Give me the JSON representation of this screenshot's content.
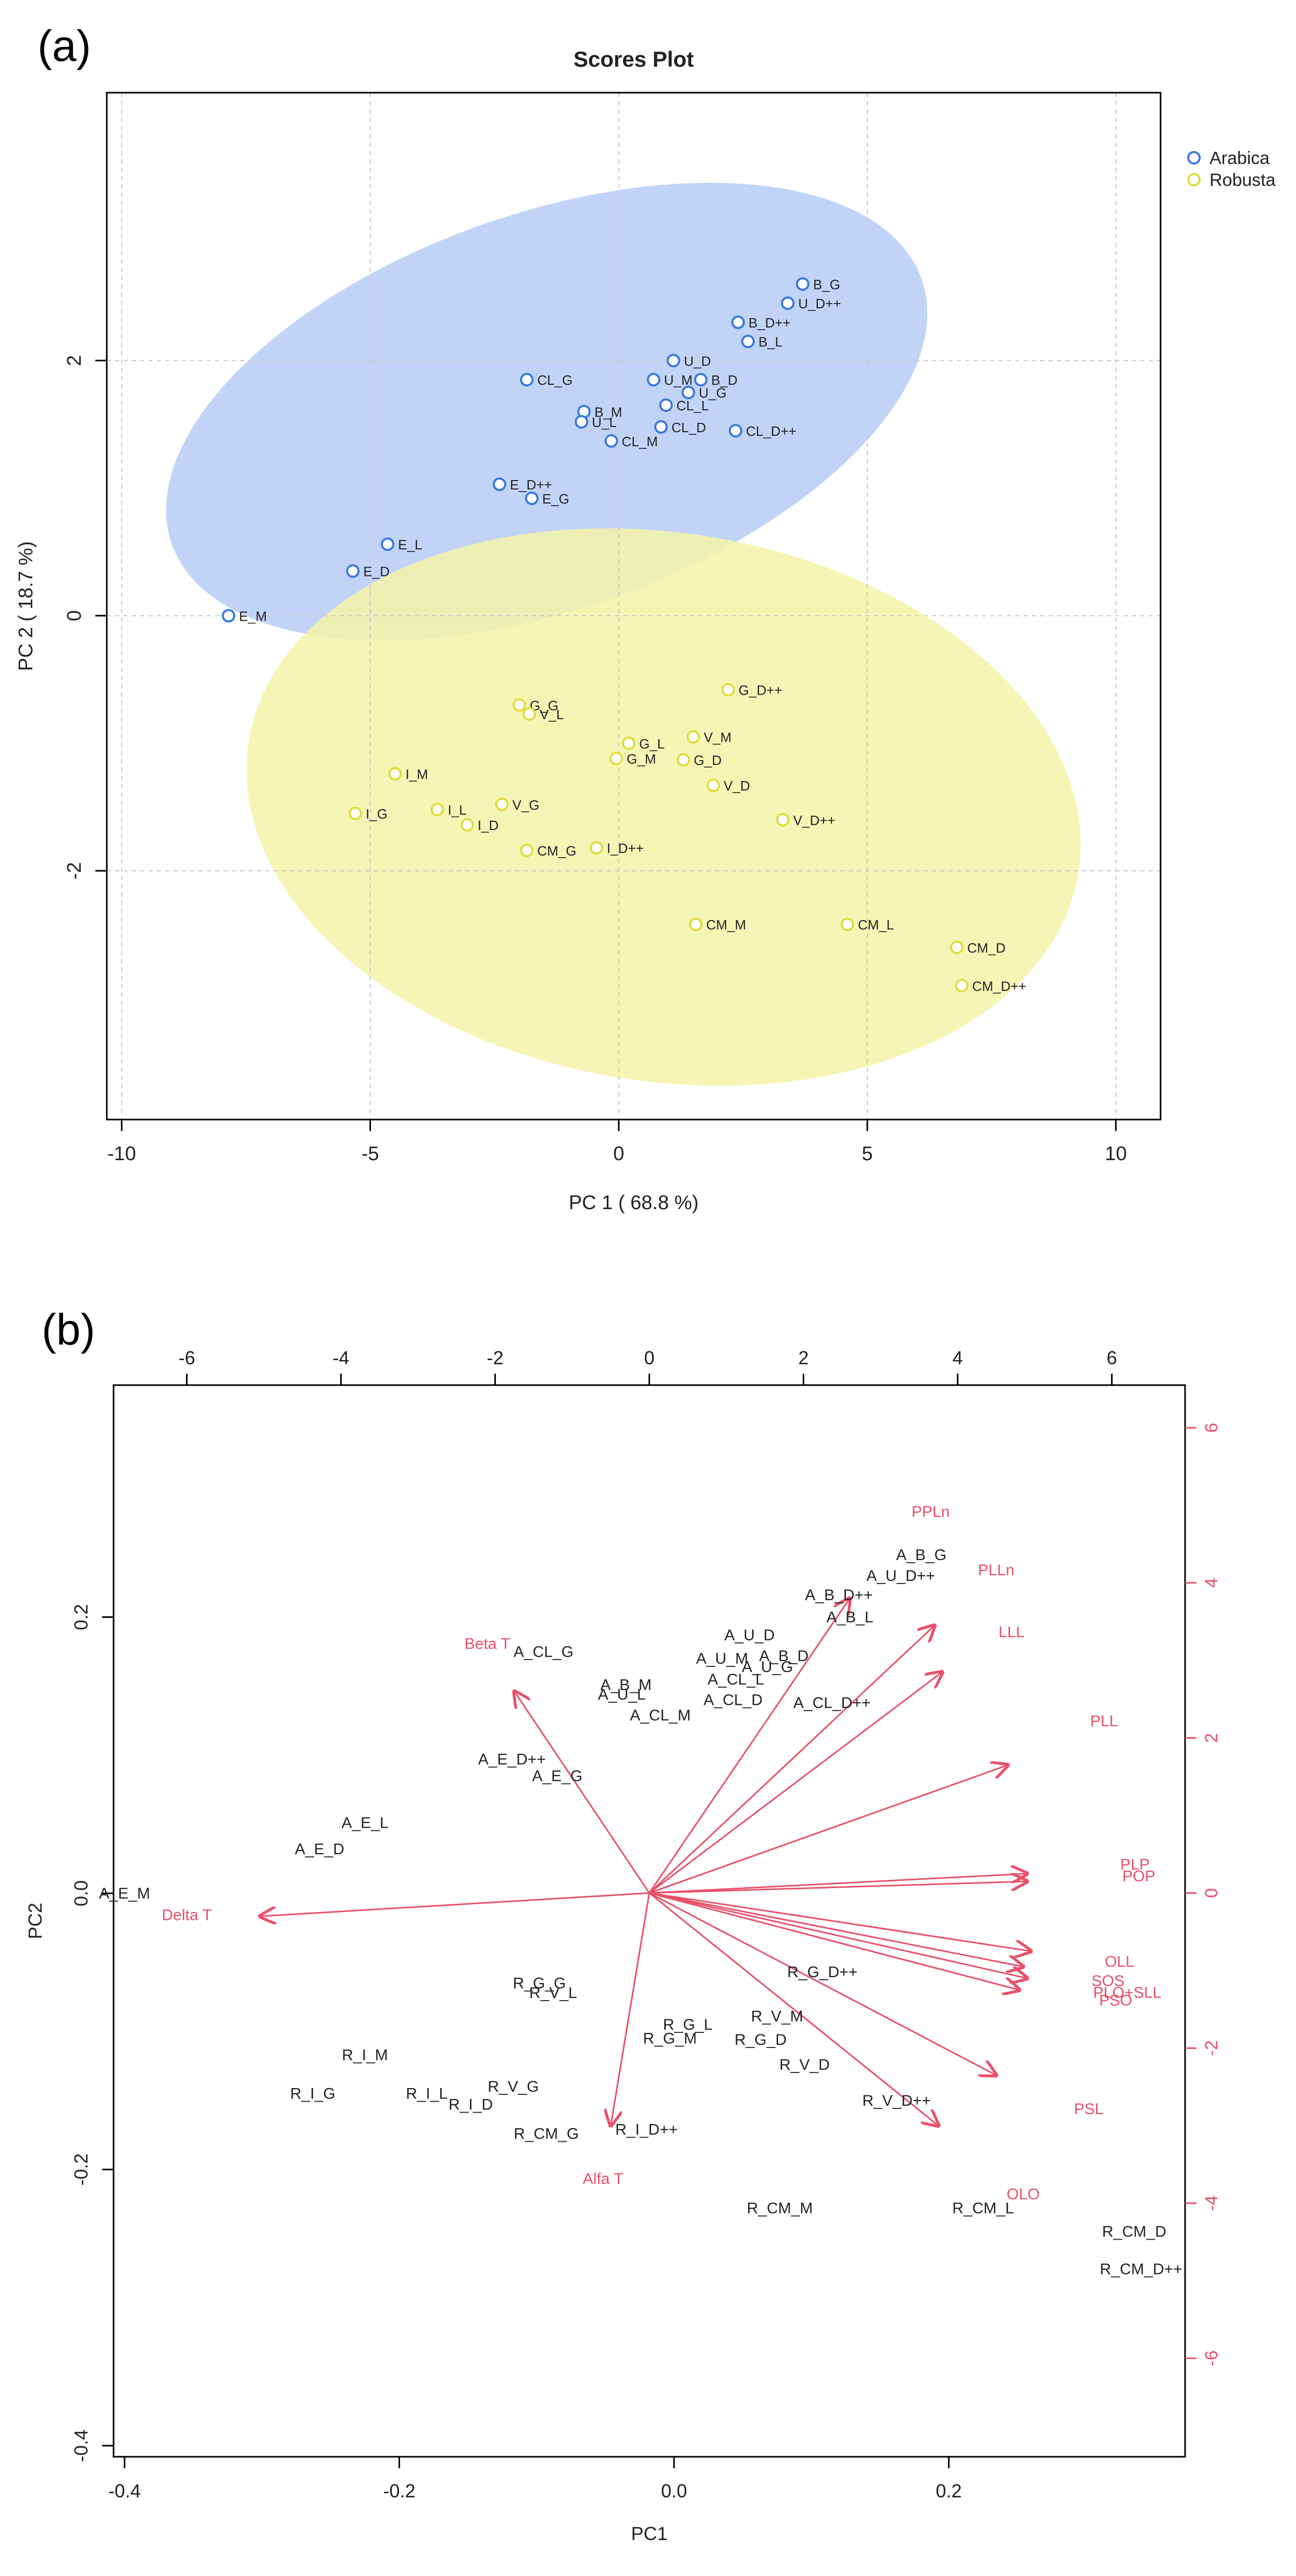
{
  "panel_a": {
    "label": "(a)",
    "chart_data": {
      "type": "scatter",
      "title": "Scores Plot",
      "xlabel": "PC 1 ( 68.8 %)",
      "ylabel": "PC 2 ( 18.7 %)",
      "xlim": [
        -10.3,
        10.9
      ],
      "ylim": [
        -3.95,
        4.1
      ],
      "xticks": [
        -10,
        -5,
        0,
        5,
        10
      ],
      "yticks": [
        -2,
        0,
        2
      ],
      "xtick_labels": [
        "-10",
        "-5",
        "0",
        "5",
        "10"
      ],
      "ytick_labels": [
        "-2",
        "0",
        "2"
      ],
      "grid": true,
      "legend": [
        {
          "name": "Arabica",
          "color": "#3a78e0"
        },
        {
          "name": "Robusta",
          "color": "#e0dc3c"
        }
      ],
      "ellipses": [
        {
          "group": "Arabica",
          "cx": -1.45,
          "cy": 1.6,
          "a": 8.0,
          "b": 1.55,
          "angle_deg": 19.5,
          "fill": "#b6cdf7"
        },
        {
          "group": "Robusta",
          "cx": 0.9,
          "cy": -1.5,
          "a": 8.45,
          "b": 2.15,
          "angle_deg": -9,
          "fill": "#f3f5a8"
        }
      ],
      "series": [
        {
          "name": "Arabica",
          "color": "#3a78e0",
          "points": [
            {
              "label": "B_G",
              "x": 3.7,
              "y": 2.6
            },
            {
              "label": "U_D++",
              "x": 3.4,
              "y": 2.45
            },
            {
              "label": "B_D++",
              "x": 2.4,
              "y": 2.3
            },
            {
              "label": "B_L",
              "x": 2.6,
              "y": 2.15
            },
            {
              "label": "U_D",
              "x": 1.1,
              "y": 2.0
            },
            {
              "label": "U_M",
              "x": 0.7,
              "y": 1.85
            },
            {
              "label": "B_D",
              "x": 1.65,
              "y": 1.85
            },
            {
              "label": "U_G",
              "x": 1.4,
              "y": 1.75
            },
            {
              "label": "CL_L",
              "x": 0.95,
              "y": 1.65
            },
            {
              "label": "CL_G",
              "x": -1.85,
              "y": 1.85
            },
            {
              "label": "B_M",
              "x": -0.7,
              "y": 1.6
            },
            {
              "label": "U_L",
              "x": -0.75,
              "y": 1.52
            },
            {
              "label": "CL_D",
              "x": 0.85,
              "y": 1.48
            },
            {
              "label": "CL_D++",
              "x": 2.35,
              "y": 1.45
            },
            {
              "label": "CL_M",
              "x": -0.15,
              "y": 1.37
            },
            {
              "label": "E_D++",
              "x": -2.4,
              "y": 1.03
            },
            {
              "label": "E_G",
              "x": -1.75,
              "y": 0.92
            },
            {
              "label": "E_L",
              "x": -4.65,
              "y": 0.56
            },
            {
              "label": "E_D",
              "x": -5.35,
              "y": 0.35
            },
            {
              "label": "E_M",
              "x": -7.85,
              "y": 0.0
            }
          ]
        },
        {
          "name": "Robusta",
          "color": "#e0dc3c",
          "points": [
            {
              "label": "G_D++",
              "x": 2.2,
              "y": -0.58
            },
            {
              "label": "G_G",
              "x": -2.0,
              "y": -0.7
            },
            {
              "label": "V_L",
              "x": -1.8,
              "y": -0.77
            },
            {
              "label": "V_M",
              "x": 1.5,
              "y": -0.95
            },
            {
              "label": "G_L",
              "x": 0.2,
              "y": -1.0
            },
            {
              "label": "G_M",
              "x": -0.05,
              "y": -1.12
            },
            {
              "label": "G_D",
              "x": 1.3,
              "y": -1.13
            },
            {
              "label": "I_M",
              "x": -4.5,
              "y": -1.24
            },
            {
              "label": "V_D",
              "x": 1.9,
              "y": -1.33
            },
            {
              "label": "V_G",
              "x": -2.35,
              "y": -1.48
            },
            {
              "label": "I_L",
              "x": -3.65,
              "y": -1.52
            },
            {
              "label": "I_G",
              "x": -5.3,
              "y": -1.55
            },
            {
              "label": "V_D++",
              "x": 3.3,
              "y": -1.6
            },
            {
              "label": "I_D",
              "x": -3.05,
              "y": -1.64
            },
            {
              "label": "I_D++",
              "x": -0.45,
              "y": -1.82
            },
            {
              "label": "CM_G",
              "x": -1.85,
              "y": -1.84
            },
            {
              "label": "CM_M",
              "x": 1.55,
              "y": -2.42
            },
            {
              "label": "CM_L",
              "x": 4.6,
              "y": -2.42
            },
            {
              "label": "CM_D",
              "x": 6.8,
              "y": -2.6
            },
            {
              "label": "CM_D++",
              "x": 6.9,
              "y": -2.9
            }
          ]
        }
      ]
    }
  },
  "panel_b": {
    "label": "(b)",
    "chart_data": {
      "type": "scatter",
      "subtype": "biplot",
      "xlabel": "PC1",
      "ylabel": "PC2",
      "xlim": [
        -0.408,
        0.372
      ],
      "ylim": [
        -0.408,
        0.368
      ],
      "xticks": [
        -0.4,
        -0.2,
        0.0,
        0.2
      ],
      "yticks": [
        -0.4,
        -0.2,
        0.0,
        0.2
      ],
      "xtick_labels": [
        "-0.4",
        "-0.2",
        "0.0",
        "0.2"
      ],
      "ytick_labels": [
        "-0.4",
        "-0.2",
        "0.0",
        "0.2"
      ],
      "top_axis": {
        "lim": [
          -6.95,
          6.95
        ],
        "ticks": [
          -6,
          -4,
          -2,
          0,
          2,
          4,
          6
        ],
        "tick_labels": [
          "-6",
          "-4",
          "-2",
          "0",
          "2",
          "4",
          "6"
        ]
      },
      "right_axis": {
        "lim": [
          -7.27,
          6.55
        ],
        "ticks": [
          -6,
          -4,
          -2,
          0,
          2,
          4,
          6
        ],
        "tick_labels": [
          "-6",
          "-4",
          "-2",
          "0",
          "2",
          "4",
          "6"
        ],
        "color": "#e8506a"
      },
      "scores": [
        {
          "label": "A_B_G",
          "x": 0.18,
          "y": 0.245
        },
        {
          "label": "A_U_D++",
          "x": 0.165,
          "y": 0.23
        },
        {
          "label": "A_B_D++",
          "x": 0.12,
          "y": 0.216
        },
        {
          "label": "A_B_L",
          "x": 0.128,
          "y": 0.2
        },
        {
          "label": "A_U_D",
          "x": 0.055,
          "y": 0.187
        },
        {
          "label": "A_CL_G",
          "x": -0.095,
          "y": 0.175
        },
        {
          "label": "A_B_D",
          "x": 0.08,
          "y": 0.172
        },
        {
          "label": "A_U_M",
          "x": 0.035,
          "y": 0.17
        },
        {
          "label": "A_U_G",
          "x": 0.068,
          "y": 0.164
        },
        {
          "label": "A_B_M",
          "x": -0.035,
          "y": 0.151
        },
        {
          "label": "A_CL_L",
          "x": 0.045,
          "y": 0.155
        },
        {
          "label": "A_U_L",
          "x": -0.038,
          "y": 0.144
        },
        {
          "label": "A_CL_D",
          "x": 0.043,
          "y": 0.14
        },
        {
          "label": "A_CL_D++",
          "x": 0.115,
          "y": 0.138
        },
        {
          "label": "A_CL_M",
          "x": -0.01,
          "y": 0.129
        },
        {
          "label": "A_E_D++",
          "x": -0.118,
          "y": 0.097
        },
        {
          "label": "A_E_G",
          "x": -0.085,
          "y": 0.085
        },
        {
          "label": "A_E_L",
          "x": -0.225,
          "y": 0.051
        },
        {
          "label": "A_E_D",
          "x": -0.258,
          "y": 0.032
        },
        {
          "label": "A_E_M",
          "x": -0.4,
          "y": 0.0
        },
        {
          "label": "R_G_D++",
          "x": 0.108,
          "y": -0.057
        },
        {
          "label": "R_G_G",
          "x": -0.098,
          "y": -0.065
        },
        {
          "label": "R_V_L",
          "x": -0.088,
          "y": -0.072
        },
        {
          "label": "R_V_M",
          "x": 0.075,
          "y": -0.089
        },
        {
          "label": "R_G_L",
          "x": 0.01,
          "y": -0.095
        },
        {
          "label": "R_G_M",
          "x": -0.003,
          "y": -0.105
        },
        {
          "label": "R_G_D",
          "x": 0.063,
          "y": -0.106
        },
        {
          "label": "R_I_M",
          "x": -0.225,
          "y": -0.117
        },
        {
          "label": "R_V_D",
          "x": 0.095,
          "y": -0.124
        },
        {
          "label": "R_V_G",
          "x": -0.117,
          "y": -0.14
        },
        {
          "label": "R_I_G",
          "x": -0.263,
          "y": -0.145
        },
        {
          "label": "R_I_L",
          "x": -0.18,
          "y": -0.145
        },
        {
          "label": "R_I_D",
          "x": -0.148,
          "y": -0.153
        },
        {
          "label": "R_V_D++",
          "x": 0.162,
          "y": -0.15
        },
        {
          "label": "R_I_D++",
          "x": -0.02,
          "y": -0.171
        },
        {
          "label": "R_CM_G",
          "x": -0.093,
          "y": -0.174
        },
        {
          "label": "R_CM_M",
          "x": 0.077,
          "y": -0.228
        },
        {
          "label": "R_CM_L",
          "x": 0.225,
          "y": -0.228
        },
        {
          "label": "R_CM_D",
          "x": 0.335,
          "y": -0.245
        },
        {
          "label": "R_CM_D++",
          "x": 0.34,
          "y": -0.272
        }
      ],
      "loadings_color": "#e8506a",
      "loadings": [
        {
          "label": "PPLn",
          "x": 2.6,
          "y": 3.8,
          "lx": 3.65,
          "ly": 4.85
        },
        {
          "label": "PLLn",
          "x": 3.7,
          "y": 3.45,
          "lx": 4.5,
          "ly": 4.1
        },
        {
          "label": "LLL",
          "x": 3.8,
          "y": 2.85,
          "lx": 4.7,
          "ly": 3.3
        },
        {
          "label": "PLL",
          "x": 4.65,
          "y": 1.65,
          "lx": 5.9,
          "ly": 2.15
        },
        {
          "label": "Beta T",
          "x": -1.75,
          "y": 2.6,
          "lx": -2.1,
          "ly": 3.15
        },
        {
          "label": "Delta T",
          "x": -5.05,
          "y": -0.3,
          "lx": -6.0,
          "ly": -0.35
        },
        {
          "label": "PLP",
          "x": 4.9,
          "y": 0.25,
          "lx": 6.3,
          "ly": 0.3
        },
        {
          "label": "POP",
          "x": 4.9,
          "y": 0.15,
          "lx": 6.35,
          "ly": 0.15
        },
        {
          "label": "OLL",
          "x": 4.95,
          "y": -0.75,
          "lx": 6.1,
          "ly": -0.95
        },
        {
          "label": "SOS",
          "x": 4.85,
          "y": -0.95,
          "lx": 5.95,
          "ly": -1.2
        },
        {
          "label": "PLO+SLL",
          "x": 4.9,
          "y": -1.1,
          "lx": 6.2,
          "ly": -1.35
        },
        {
          "label": "PSO",
          "x": 4.8,
          "y": -1.25,
          "lx": 6.05,
          "ly": -1.45
        },
        {
          "label": "PSL",
          "x": 4.5,
          "y": -2.35,
          "lx": 5.7,
          "ly": -2.85
        },
        {
          "label": "OLO",
          "x": 3.75,
          "y": -3.0,
          "lx": 4.85,
          "ly": -3.95
        },
        {
          "label": "Alfa T",
          "x": -0.5,
          "y": -3.0,
          "lx": -0.6,
          "ly": -3.75
        }
      ]
    }
  }
}
